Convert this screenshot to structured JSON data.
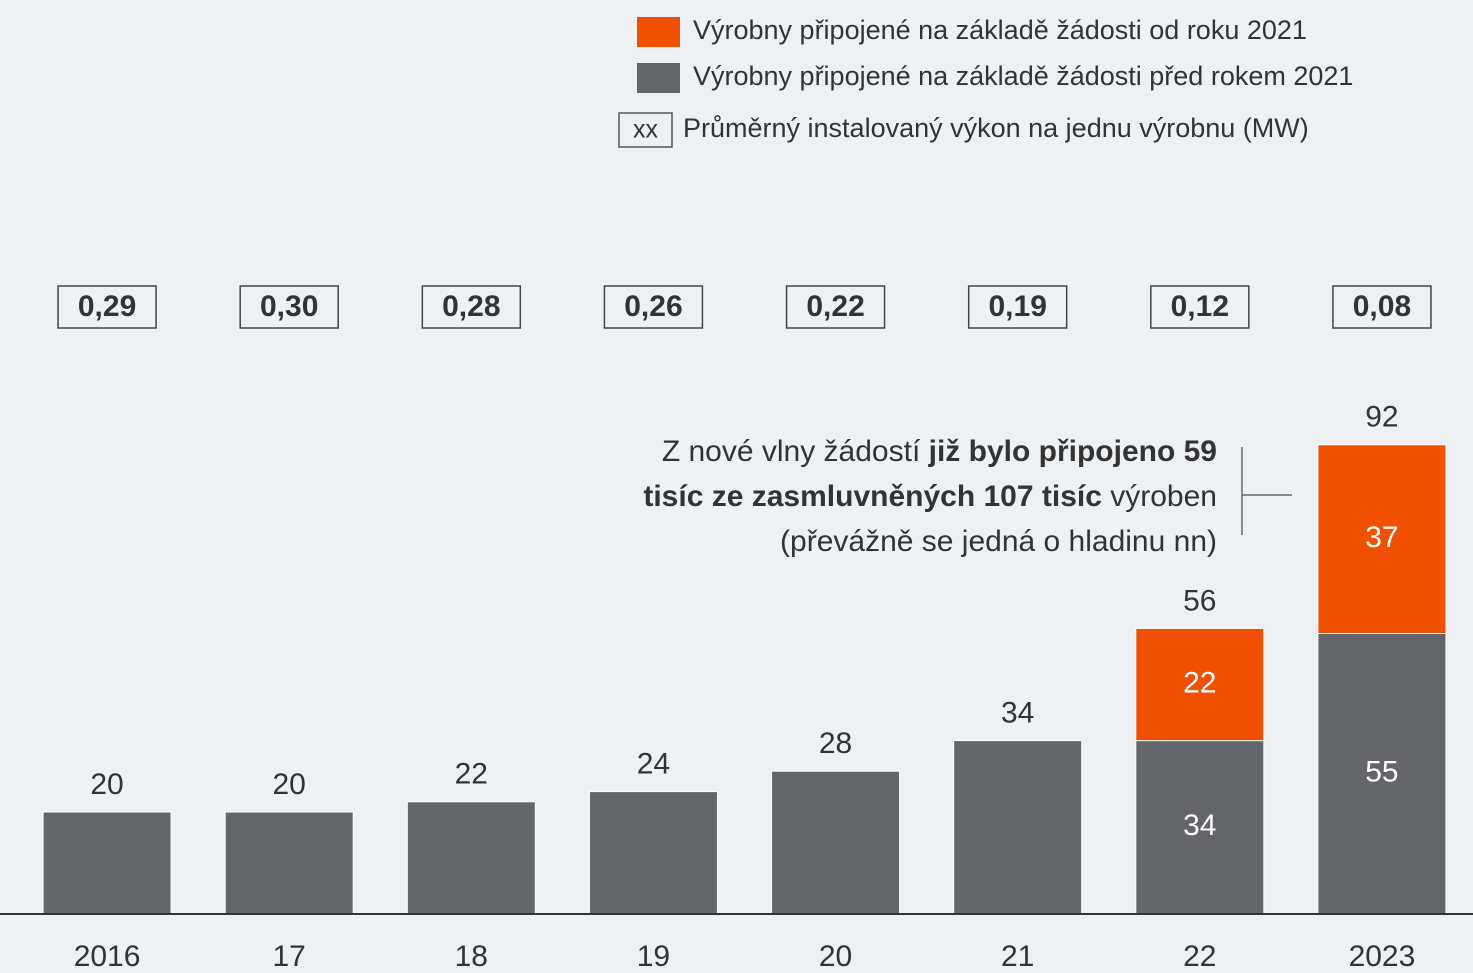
{
  "chart_data": {
    "type": "stacked_bar",
    "categories": [
      "2016",
      "17",
      "18",
      "19",
      "20",
      "21",
      "22",
      "2023"
    ],
    "series": [
      {
        "name": "Výrobny připojené na základě žádosti před rokem 2021",
        "color": "#636569",
        "values": [
          20,
          20,
          22,
          24,
          28,
          34,
          34,
          55
        ]
      },
      {
        "name": "Výrobny připojené na základě žádosti od roku 2021",
        "color": "#f05000",
        "values": [
          null,
          null,
          null,
          null,
          null,
          null,
          22,
          37
        ]
      }
    ],
    "legend_order": [
      1,
      0
    ],
    "totals": [
      20,
      20,
      22,
      24,
      28,
      34,
      56,
      92
    ],
    "avg_power_legend": {
      "marker": "xx",
      "label": "Průměrný instalovaný výkon na jednu výrobnu (MW)"
    },
    "avg_power": [
      {
        "value": 0.29,
        "label": "0,29"
      },
      {
        "value": 0.3,
        "label": "0,30"
      },
      {
        "value": 0.28,
        "label": "0,28"
      },
      {
        "value": 0.26,
        "label": "0,26"
      },
      {
        "value": 0.22,
        "label": "0,22"
      },
      {
        "value": 0.19,
        "label": "0,19"
      },
      {
        "value": 0.12,
        "label": "0,12"
      },
      {
        "value": 0.08,
        "label": "0,08"
      }
    ],
    "annotation": [
      [
        {
          "text": "Z nové vlny žádostí ",
          "bold": false
        },
        {
          "text": "již bylo připojeno 59",
          "bold": true
        }
      ],
      [
        {
          "text": "tisíc ze zasmluvněných 107 tisíc",
          "bold": true
        },
        {
          "text": " výroben",
          "bold": false
        }
      ],
      [
        {
          "text": "(převážně se jedná o hladinu nn)",
          "bold": false
        }
      ]
    ],
    "ylim": [
      0,
      100
    ]
  }
}
